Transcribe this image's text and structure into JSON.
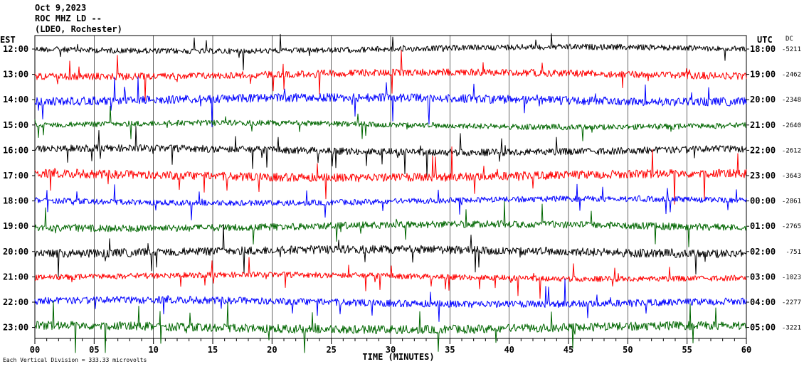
{
  "header": {
    "date": "Oct 9,2023",
    "station": "ROC MHZ LD --",
    "network": "(LDEO, Rochester)"
  },
  "left_axis_title": "EST",
  "right_axis_title": "UTC",
  "dc_title": "DC",
  "footer": "Each Vertical Division = 333.33 microvolts",
  "chart_data": {
    "type": "line",
    "xlabel": "TIME (MINUTES)",
    "x_ticks": [
      "00",
      "05",
      "10",
      "15",
      "20",
      "25",
      "30",
      "35",
      "40",
      "45",
      "50",
      "55",
      "60"
    ],
    "xlim": [
      0,
      60
    ],
    "rows": [
      {
        "est": "12:00",
        "utc": "18:00",
        "dc": "-5211",
        "color": "#000000"
      },
      {
        "est": "13:00",
        "utc": "19:00",
        "dc": "-2462",
        "color": "#ff0000"
      },
      {
        "est": "14:00",
        "utc": "20:00",
        "dc": "-2348",
        "color": "#0000ff"
      },
      {
        "est": "15:00",
        "utc": "21:00",
        "dc": "-2640",
        "color": "#006600"
      },
      {
        "est": "16:00",
        "utc": "22:00",
        "dc": "-2612",
        "color": "#000000"
      },
      {
        "est": "17:00",
        "utc": "23:00",
        "dc": "-3643",
        "color": "#ff0000"
      },
      {
        "est": "18:00",
        "utc": "00:00",
        "dc": "-2861",
        "color": "#0000ff"
      },
      {
        "est": "19:00",
        "utc": "01:00",
        "dc": "-2765",
        "color": "#006600"
      },
      {
        "est": "20:00",
        "utc": "02:00",
        "dc": "-751",
        "color": "#000000"
      },
      {
        "est": "21:00",
        "utc": "03:00",
        "dc": "-1023",
        "color": "#ff0000"
      },
      {
        "est": "22:00",
        "utc": "04:00",
        "dc": "-2277",
        "color": "#0000ff"
      },
      {
        "est": "23:00",
        "utc": "05:00",
        "dc": "-3221",
        "color": "#006600"
      }
    ]
  }
}
